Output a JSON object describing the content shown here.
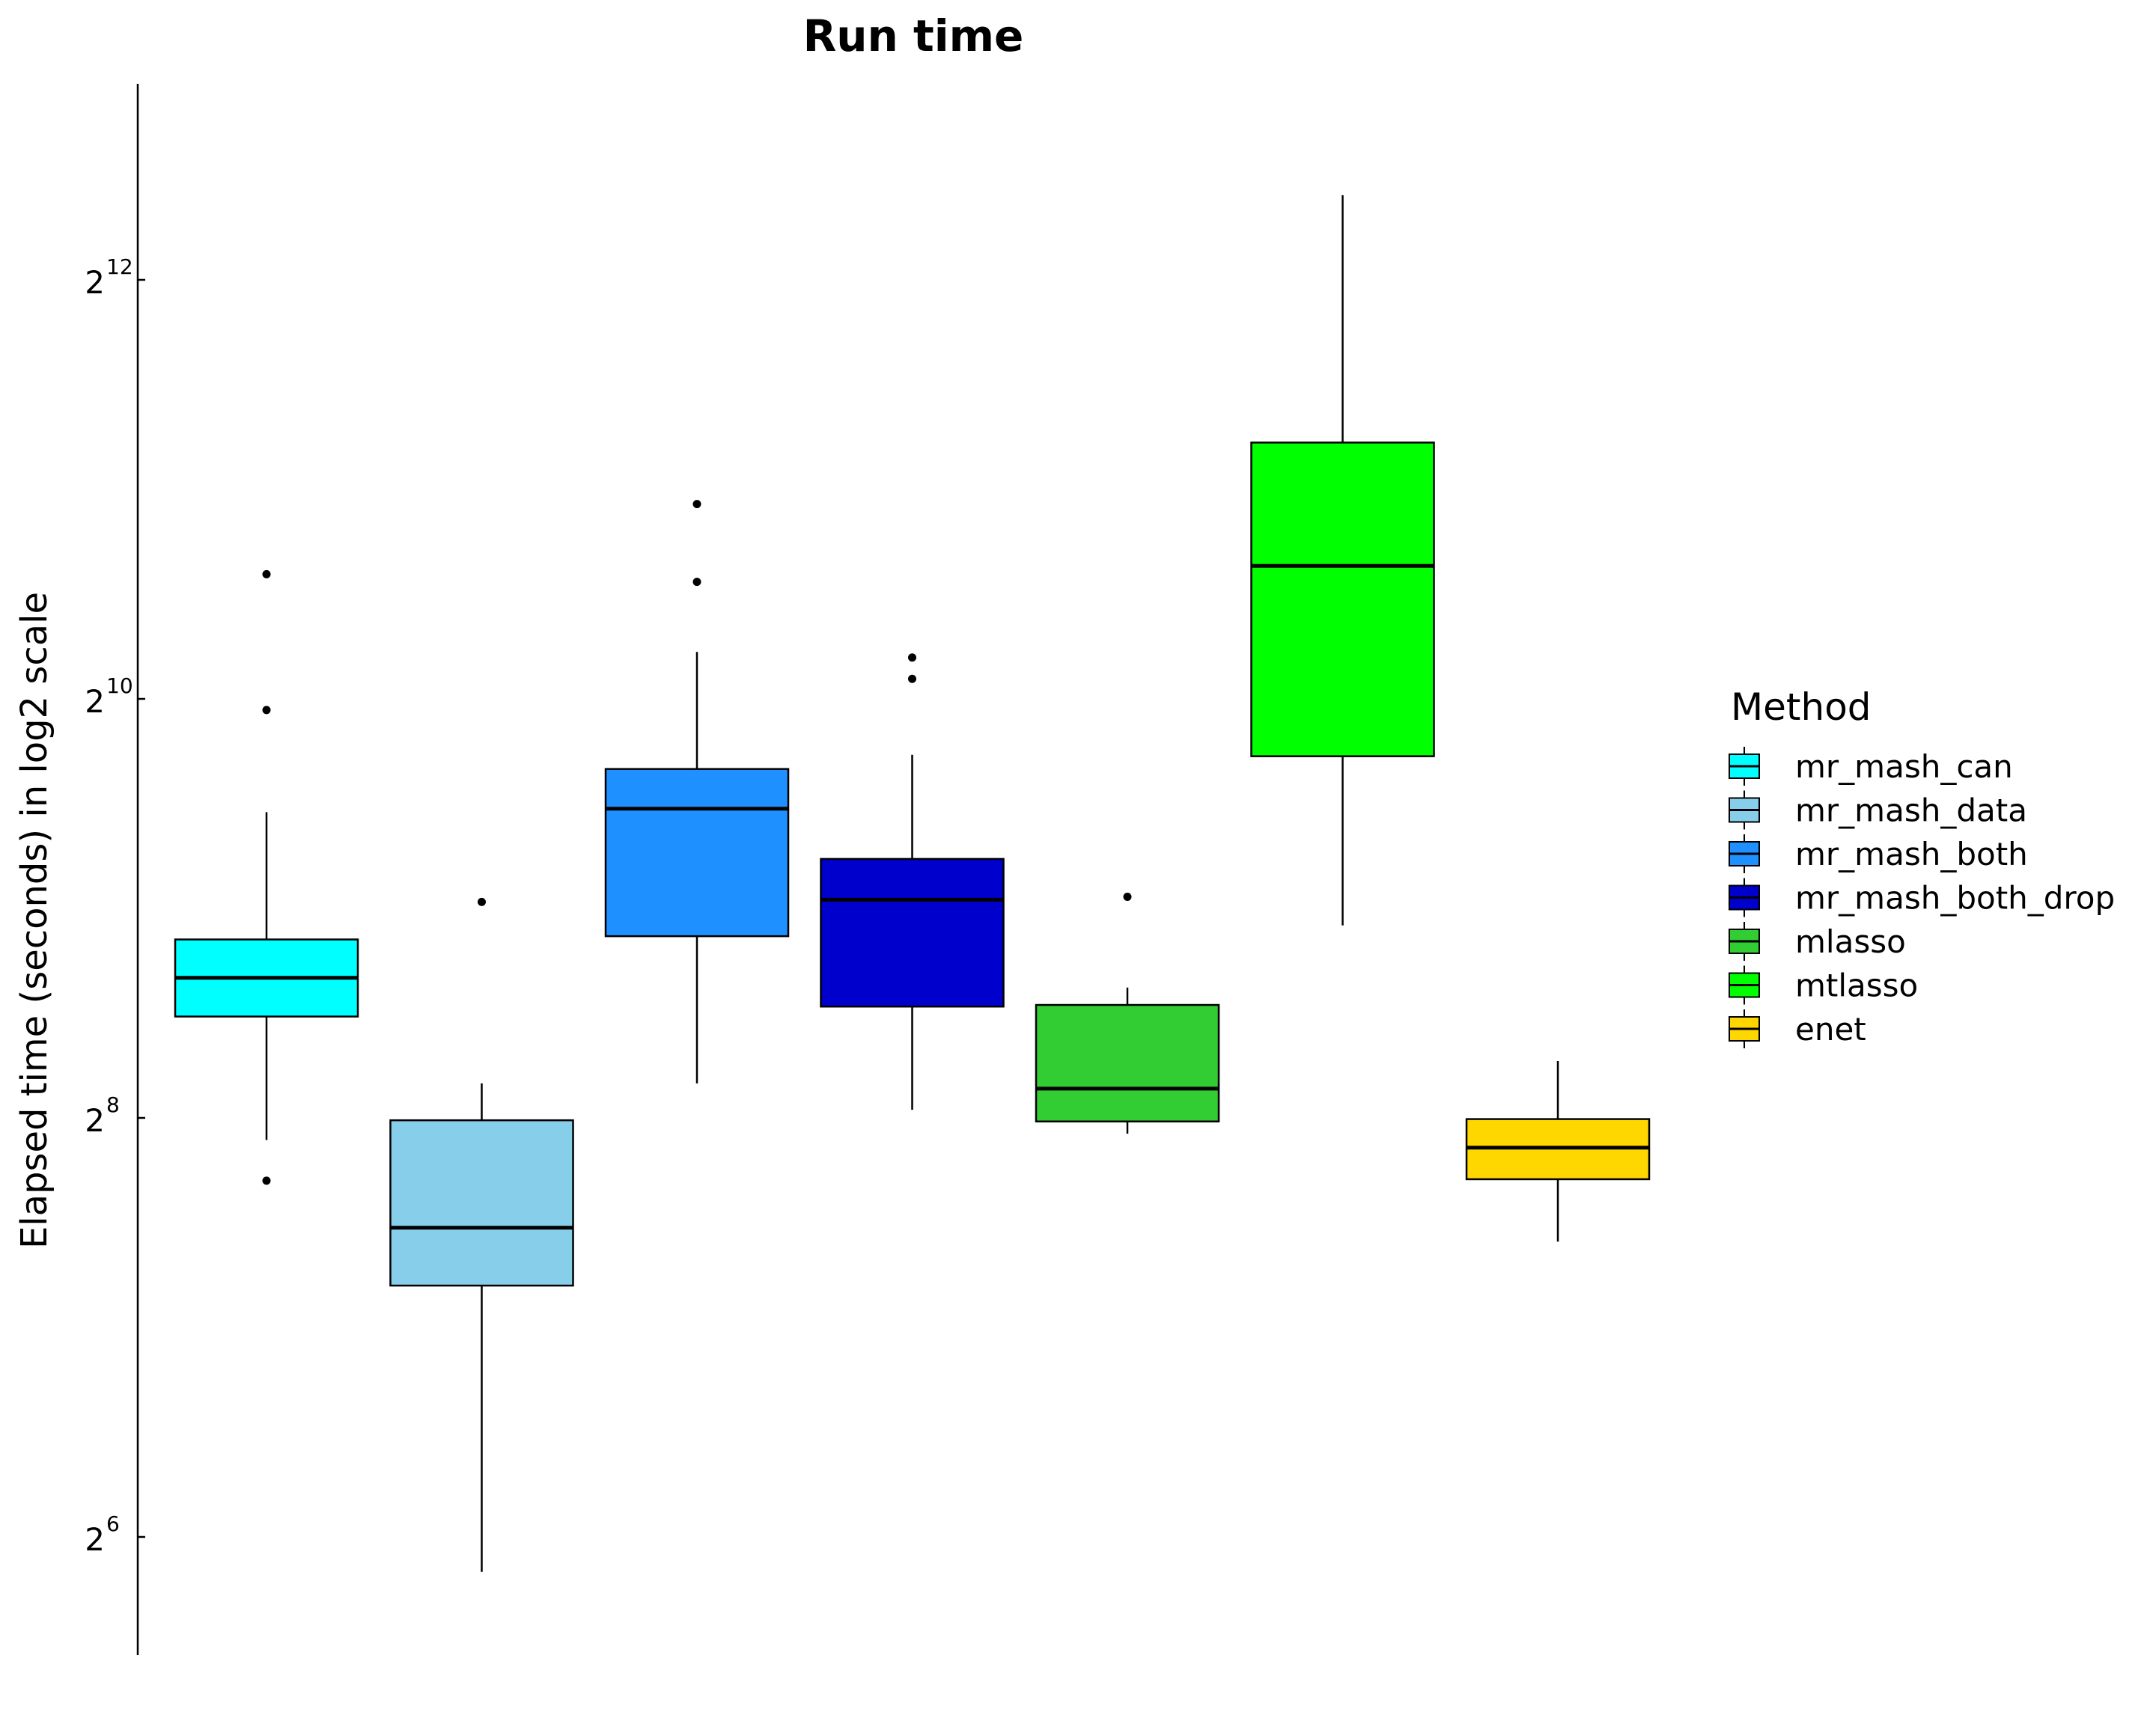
{
  "chart_data": {
    "type": "boxplot",
    "title": "Run time",
    "xlabel": "",
    "ylabel": "Elapsed time (seconds) in log2 scale",
    "yscale": "log2",
    "ylim": [
      42,
      10500
    ],
    "yticks": [
      {
        "value": 64,
        "base": "2",
        "exp": "6"
      },
      {
        "value": 256,
        "base": "2",
        "exp": "8"
      },
      {
        "value": 1024,
        "base": "2",
        "exp": "10"
      },
      {
        "value": 4096,
        "base": "2",
        "exp": "12"
      }
    ],
    "legend": {
      "title": "Method",
      "position": "right"
    },
    "series": [
      {
        "name": "mr_mash_can",
        "color": "#00FFFF",
        "whisker_low": 238,
        "q1": 358,
        "median": 407,
        "q3": 462,
        "whisker_high": 704,
        "outliers": [
          208,
          987,
          1547
        ]
      },
      {
        "name": "mr_mash_data",
        "color": "#87CEEB",
        "whisker_low": 57,
        "q1": 147,
        "median": 178,
        "q3": 254,
        "whisker_high": 287,
        "outliers": [
          523
        ]
      },
      {
        "name": "mr_mash_both",
        "color": "#1E90FF",
        "whisker_low": 287,
        "q1": 467,
        "median": 712,
        "q3": 812,
        "whisker_high": 1196,
        "outliers": [
          1508,
          1951
        ]
      },
      {
        "name": "mr_mash_both_drop",
        "color": "#0000CD",
        "whisker_low": 263,
        "q1": 370,
        "median": 527,
        "q3": 603,
        "whisker_high": 851,
        "outliers": [
          1094,
          1174
        ]
      },
      {
        "name": "mlasso",
        "color": "#32CD32",
        "whisker_low": 243,
        "q1": 253,
        "median": 282,
        "q3": 372,
        "whisker_high": 394,
        "outliers": [
          532
        ]
      },
      {
        "name": "mtlasso",
        "color": "#00FF00",
        "whisker_low": 484,
        "q1": 847,
        "median": 1590,
        "q3": 2391,
        "whisker_high": 5420,
        "outliers": []
      },
      {
        "name": "enet",
        "color": "#FFD700",
        "whisker_low": 170,
        "q1": 209,
        "median": 232,
        "q3": 255,
        "whisker_high": 309,
        "outliers": []
      }
    ]
  }
}
